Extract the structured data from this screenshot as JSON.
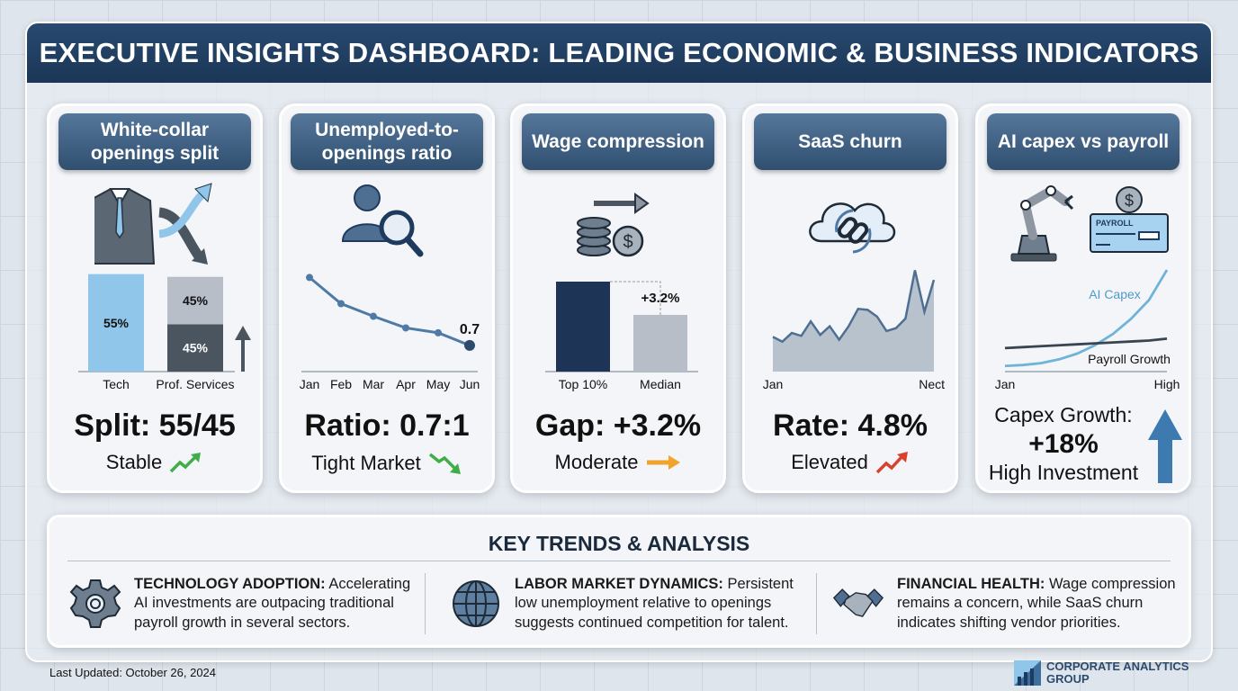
{
  "title": "EXECUTIVE INSIGHTS DASHBOARD: LEADING ECONOMIC & BUSINESS INDICATORS",
  "colors": {
    "navy": "#1e3a5f",
    "light_blue": "#8fc6ea",
    "gray": "#b8bec8",
    "dark_gray": "#4a5560",
    "green": "#3fae49",
    "red": "#d9412f",
    "orange": "#f2a32a",
    "accent": "#3d7ab0"
  },
  "cards": [
    {
      "title": "White-collar openings split",
      "icon": "suit-split-arrows-icon",
      "value": "Split: 55/45",
      "status": "Stable",
      "trend_icon": "trend-up-green-icon"
    },
    {
      "title": "Unemployed-to-openings ratio",
      "icon": "person-search-icon",
      "value": "Ratio: 0.7:1",
      "status": "Tight Market",
      "trend_icon": "trend-down-green-icon"
    },
    {
      "title": "Wage compression",
      "icon": "coins-dollar-icon",
      "value": "Gap: +3.2%",
      "status": "Moderate",
      "trend_icon": "arrow-right-orange-icon"
    },
    {
      "title": "SaaS churn",
      "icon": "cloud-link-icon",
      "value": "Rate: 4.8%",
      "status": "Elevated",
      "trend_icon": "trend-up-red-icon"
    },
    {
      "title": "AI capex vs payroll",
      "icon": "robot-arm-payroll-icon",
      "value_label": "Capex Growth:",
      "value": "+18%",
      "status": "High Investment",
      "trend_icon": "arrow-up-blue-icon",
      "payroll_check_text": "PAYROLL"
    }
  ],
  "chart_data": [
    {
      "type": "bar",
      "categories": [
        "Tech",
        "Prof. Services"
      ],
      "stacked": true,
      "bars": [
        [
          {
            "value": 55,
            "label": "55%",
            "color": "#8fc6ea"
          }
        ],
        [
          {
            "value": 45,
            "label": "45%",
            "color": "#4a5560"
          },
          {
            "value": 45,
            "label": "45%",
            "color": "#b8bec8"
          }
        ]
      ]
    },
    {
      "type": "line",
      "categories": [
        "Jan",
        "Feb",
        "Mar",
        "Apr",
        "May",
        "Jun"
      ],
      "values": [
        1.4,
        1.13,
        1.0,
        0.88,
        0.83,
        0.7
      ],
      "end_label": "0.7",
      "ylim": [
        0.43,
        1.45
      ]
    },
    {
      "type": "bar",
      "categories": [
        "Top 10%",
        "Median"
      ],
      "values": [
        100,
        63
      ],
      "annotation": "+3.2%"
    },
    {
      "type": "area",
      "x_labels": [
        "Jan",
        "Nect"
      ],
      "values": [
        36,
        31,
        40,
        37,
        52,
        38,
        47,
        33,
        47,
        65,
        64,
        57,
        42,
        45,
        55,
        105,
        62,
        95
      ],
      "ylim": [
        0,
        110
      ]
    },
    {
      "type": "line",
      "x_labels": [
        "Jan",
        "High"
      ],
      "series": [
        {
          "name": "AI Capex",
          "values": [
            6,
            7,
            9,
            13,
            19,
            28,
            40,
            56,
            76,
            108
          ]
        },
        {
          "name": "Payroll Growth",
          "values": [
            25,
            26,
            27,
            28,
            29,
            30,
            31,
            32,
            33,
            35
          ]
        }
      ],
      "ylim": [
        0,
        110
      ]
    }
  ],
  "trends": {
    "title": "KEY TRENDS & ANALYSIS",
    "items": [
      {
        "icon": "gear-icon",
        "heading": "TECHNOLOGY ADOPTION:",
        "text": " Accelerating AI investments are outpacing traditional payroll growth in several sectors."
      },
      {
        "icon": "globe-icon",
        "heading": "LABOR MARKET DYNAMICS:",
        "text": " Persistent low unemployment relative to openings suggests continued competition for talent."
      },
      {
        "icon": "handshake-icon",
        "heading": "FINANCIAL HEALTH:",
        "text": " Wage compression remains a concern, while SaaS churn indicates shifting vendor priorities."
      }
    ]
  },
  "footer": {
    "updated": "Last Updated: October 26, 2024",
    "logo_line1": "CORPORATE ANALYTICS",
    "logo_line2": "GROUP"
  }
}
